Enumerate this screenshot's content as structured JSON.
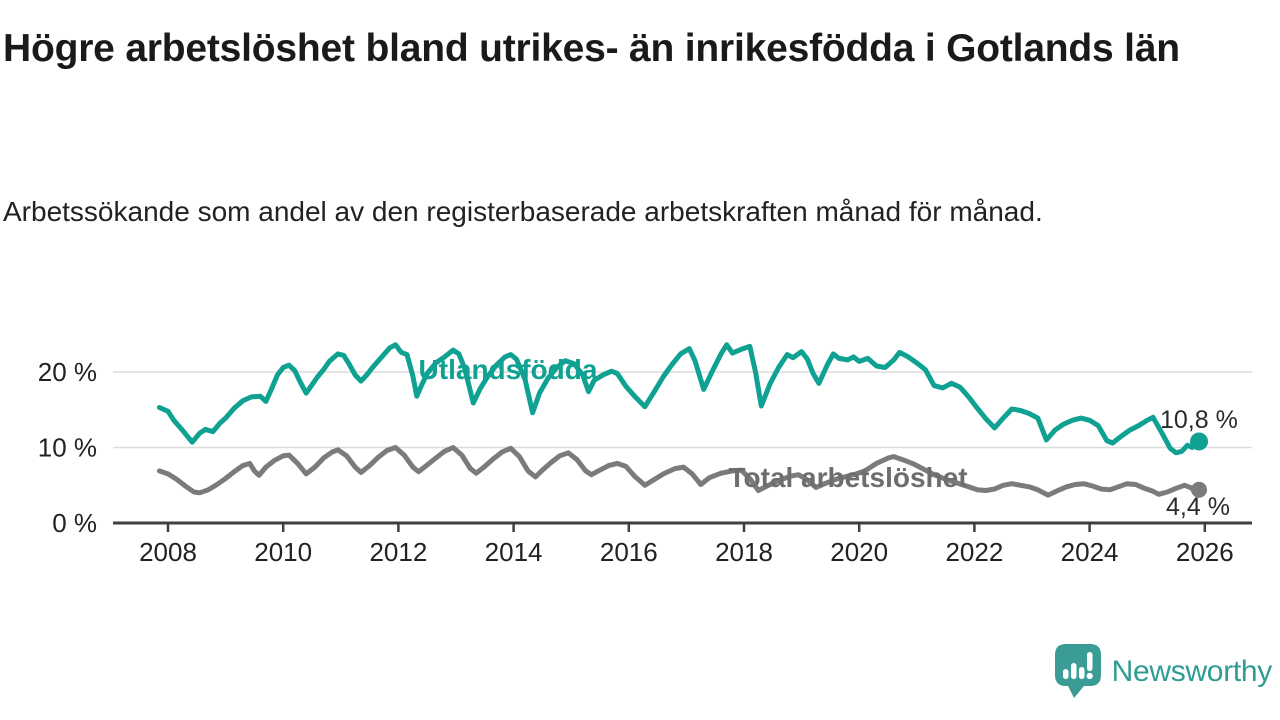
{
  "header": {
    "title": "Högre arbetslöshet bland utrikes- än inrikesfödda i Gotlands län",
    "subtitle": "Arbetssökande som andel av den registerbaserade arbetskraften månad för månad."
  },
  "footer": {
    "brand": "Newsworthy",
    "logo_icon": "speech-bubble-bar-chart-icon"
  },
  "colors": {
    "accent_teal": "#0fa191",
    "line_gray": "#7b7b7b",
    "label_gray": "#6e6e6e",
    "axis": "#3f3f3f",
    "gridline": "#dcdcdc",
    "text_dark": "#1a1a1a",
    "end_label": "#2b2b2b",
    "brand_teal": "#2f9c94",
    "logo_teal": "#3a9c95"
  },
  "chart_data": {
    "type": "line",
    "title": "Högre arbetslöshet bland utrikes- än inrikesfödda i Gotlands län",
    "xlabel": "",
    "ylabel": "",
    "unit": "%",
    "grid": true,
    "x_axis": {
      "ticks": [
        2008,
        2010,
        2012,
        2014,
        2016,
        2018,
        2020,
        2022,
        2024,
        2026
      ],
      "tick_labels": [
        "2008",
        "2010",
        "2012",
        "2014",
        "2016",
        "2018",
        "2020",
        "2022",
        "2024",
        "2026"
      ],
      "range": [
        2007.8,
        2026.8
      ]
    },
    "y_axis": {
      "ticks": [
        0,
        10,
        20
      ],
      "tick_labels": [
        "0 %",
        "10 %",
        "20 %"
      ],
      "range": [
        0,
        24.5
      ]
    },
    "series": [
      {
        "name": "Utlandsfödda",
        "color": "#0fa191",
        "label_color": "#0fa191",
        "end_label": "10,8 %",
        "end_value": 10.8,
        "points": [
          [
            2007.85,
            15.3
          ],
          [
            2008.0,
            14.8
          ],
          [
            2008.1,
            13.6
          ],
          [
            2008.25,
            12.3
          ],
          [
            2008.42,
            10.7
          ],
          [
            2008.55,
            11.9
          ],
          [
            2008.65,
            12.4
          ],
          [
            2008.78,
            12.1
          ],
          [
            2008.9,
            13.2
          ],
          [
            2009.0,
            13.9
          ],
          [
            2009.15,
            15.2
          ],
          [
            2009.3,
            16.2
          ],
          [
            2009.45,
            16.7
          ],
          [
            2009.6,
            16.8
          ],
          [
            2009.7,
            16.1
          ],
          [
            2009.8,
            17.8
          ],
          [
            2009.9,
            19.6
          ],
          [
            2010.0,
            20.6
          ],
          [
            2010.1,
            20.9
          ],
          [
            2010.2,
            20.2
          ],
          [
            2010.3,
            18.6
          ],
          [
            2010.4,
            17.2
          ],
          [
            2010.5,
            18.3
          ],
          [
            2010.6,
            19.4
          ],
          [
            2010.7,
            20.3
          ],
          [
            2010.8,
            21.4
          ],
          [
            2010.95,
            22.4
          ],
          [
            2011.05,
            22.2
          ],
          [
            2011.15,
            21.0
          ],
          [
            2011.25,
            19.6
          ],
          [
            2011.35,
            18.8
          ],
          [
            2011.45,
            19.6
          ],
          [
            2011.55,
            20.6
          ],
          [
            2011.7,
            21.9
          ],
          [
            2011.85,
            23.2
          ],
          [
            2011.95,
            23.6
          ],
          [
            2012.05,
            22.6
          ],
          [
            2012.15,
            22.3
          ],
          [
            2012.25,
            19.5
          ],
          [
            2012.32,
            16.8
          ],
          [
            2012.4,
            18.2
          ],
          [
            2012.5,
            19.8
          ],
          [
            2012.65,
            21.2
          ],
          [
            2012.8,
            22.0
          ],
          [
            2012.95,
            22.9
          ],
          [
            2013.05,
            22.4
          ],
          [
            2013.15,
            20.5
          ],
          [
            2013.3,
            15.9
          ],
          [
            2013.42,
            17.8
          ],
          [
            2013.55,
            19.4
          ],
          [
            2013.7,
            20.9
          ],
          [
            2013.85,
            22.0
          ],
          [
            2013.95,
            22.3
          ],
          [
            2014.05,
            21.7
          ],
          [
            2014.2,
            19.0
          ],
          [
            2014.33,
            14.6
          ],
          [
            2014.45,
            17.2
          ],
          [
            2014.6,
            19.2
          ],
          [
            2014.75,
            20.6
          ],
          [
            2014.9,
            21.5
          ],
          [
            2015.05,
            21.1
          ],
          [
            2015.2,
            19.6
          ],
          [
            2015.3,
            17.4
          ],
          [
            2015.4,
            18.9
          ],
          [
            2015.55,
            19.6
          ],
          [
            2015.7,
            20.1
          ],
          [
            2015.8,
            19.8
          ],
          [
            2015.95,
            18.1
          ],
          [
            2016.1,
            16.8
          ],
          [
            2016.28,
            15.4
          ],
          [
            2016.45,
            17.5
          ],
          [
            2016.6,
            19.4
          ],
          [
            2016.75,
            21.0
          ],
          [
            2016.9,
            22.4
          ],
          [
            2017.05,
            23.1
          ],
          [
            2017.15,
            21.5
          ],
          [
            2017.3,
            17.7
          ],
          [
            2017.45,
            20.1
          ],
          [
            2017.6,
            22.4
          ],
          [
            2017.7,
            23.6
          ],
          [
            2017.8,
            22.5
          ],
          [
            2017.95,
            23.0
          ],
          [
            2018.1,
            23.4
          ],
          [
            2018.2,
            20.0
          ],
          [
            2018.3,
            15.5
          ],
          [
            2018.45,
            18.4
          ],
          [
            2018.6,
            20.6
          ],
          [
            2018.75,
            22.3
          ],
          [
            2018.85,
            21.9
          ],
          [
            2019.0,
            22.7
          ],
          [
            2019.1,
            21.7
          ],
          [
            2019.2,
            19.8
          ],
          [
            2019.3,
            18.5
          ],
          [
            2019.45,
            21.0
          ],
          [
            2019.55,
            22.4
          ],
          [
            2019.65,
            21.8
          ],
          [
            2019.8,
            21.6
          ],
          [
            2019.9,
            22.0
          ],
          [
            2020.0,
            21.4
          ],
          [
            2020.15,
            21.8
          ],
          [
            2020.3,
            20.8
          ],
          [
            2020.45,
            20.6
          ],
          [
            2020.6,
            21.6
          ],
          [
            2020.7,
            22.6
          ],
          [
            2020.85,
            22.0
          ],
          [
            2021.0,
            21.2
          ],
          [
            2021.15,
            20.3
          ],
          [
            2021.3,
            18.2
          ],
          [
            2021.45,
            17.9
          ],
          [
            2021.6,
            18.5
          ],
          [
            2021.75,
            18.0
          ],
          [
            2021.9,
            16.7
          ],
          [
            2022.05,
            15.2
          ],
          [
            2022.2,
            13.8
          ],
          [
            2022.35,
            12.6
          ],
          [
            2022.5,
            13.9
          ],
          [
            2022.65,
            15.1
          ],
          [
            2022.8,
            14.9
          ],
          [
            2022.95,
            14.5
          ],
          [
            2023.1,
            13.9
          ],
          [
            2023.25,
            11.0
          ],
          [
            2023.4,
            12.3
          ],
          [
            2023.55,
            13.1
          ],
          [
            2023.7,
            13.6
          ],
          [
            2023.85,
            13.9
          ],
          [
            2024.0,
            13.6
          ],
          [
            2024.15,
            12.9
          ],
          [
            2024.3,
            10.9
          ],
          [
            2024.4,
            10.6
          ],
          [
            2024.55,
            11.5
          ],
          [
            2024.7,
            12.3
          ],
          [
            2024.85,
            12.9
          ],
          [
            2025.0,
            13.6
          ],
          [
            2025.1,
            14.0
          ],
          [
            2025.25,
            12.0
          ],
          [
            2025.4,
            9.9
          ],
          [
            2025.5,
            9.3
          ],
          [
            2025.6,
            9.5
          ],
          [
            2025.7,
            10.3
          ],
          [
            2025.78,
            10.0
          ],
          [
            2025.9,
            10.8
          ]
        ]
      },
      {
        "name": "Total arbetslöshet",
        "color": "#7b7b7b",
        "label_color": "#6e6e6e",
        "end_label": "4,4 %",
        "end_value": 4.4,
        "points": [
          [
            2007.85,
            6.9
          ],
          [
            2008.0,
            6.5
          ],
          [
            2008.15,
            5.8
          ],
          [
            2008.3,
            4.9
          ],
          [
            2008.45,
            4.1
          ],
          [
            2008.55,
            4.0
          ],
          [
            2008.7,
            4.4
          ],
          [
            2008.85,
            5.1
          ],
          [
            2009.0,
            5.9
          ],
          [
            2009.15,
            6.8
          ],
          [
            2009.3,
            7.6
          ],
          [
            2009.42,
            7.9
          ],
          [
            2009.5,
            6.9
          ],
          [
            2009.58,
            6.3
          ],
          [
            2009.7,
            7.4
          ],
          [
            2009.85,
            8.3
          ],
          [
            2010.0,
            8.9
          ],
          [
            2010.1,
            9.0
          ],
          [
            2010.25,
            7.9
          ],
          [
            2010.4,
            6.5
          ],
          [
            2010.55,
            7.4
          ],
          [
            2010.7,
            8.6
          ],
          [
            2010.85,
            9.4
          ],
          [
            2010.95,
            9.7
          ],
          [
            2011.1,
            8.9
          ],
          [
            2011.25,
            7.4
          ],
          [
            2011.35,
            6.7
          ],
          [
            2011.5,
            7.6
          ],
          [
            2011.65,
            8.7
          ],
          [
            2011.8,
            9.6
          ],
          [
            2011.95,
            10.0
          ],
          [
            2012.1,
            9.0
          ],
          [
            2012.25,
            7.4
          ],
          [
            2012.35,
            6.8
          ],
          [
            2012.5,
            7.7
          ],
          [
            2012.65,
            8.6
          ],
          [
            2012.8,
            9.5
          ],
          [
            2012.95,
            10.0
          ],
          [
            2013.1,
            9.0
          ],
          [
            2013.25,
            7.2
          ],
          [
            2013.35,
            6.6
          ],
          [
            2013.5,
            7.5
          ],
          [
            2013.65,
            8.5
          ],
          [
            2013.8,
            9.4
          ],
          [
            2013.95,
            9.9
          ],
          [
            2014.1,
            8.8
          ],
          [
            2014.25,
            6.9
          ],
          [
            2014.38,
            6.1
          ],
          [
            2014.5,
            7.0
          ],
          [
            2014.65,
            8.0
          ],
          [
            2014.8,
            8.9
          ],
          [
            2014.95,
            9.3
          ],
          [
            2015.1,
            8.4
          ],
          [
            2015.25,
            6.9
          ],
          [
            2015.35,
            6.4
          ],
          [
            2015.5,
            7.0
          ],
          [
            2015.65,
            7.6
          ],
          [
            2015.8,
            7.9
          ],
          [
            2015.95,
            7.5
          ],
          [
            2016.1,
            6.2
          ],
          [
            2016.28,
            5.0
          ],
          [
            2016.45,
            5.8
          ],
          [
            2016.6,
            6.5
          ],
          [
            2016.8,
            7.2
          ],
          [
            2016.95,
            7.4
          ],
          [
            2017.1,
            6.5
          ],
          [
            2017.25,
            5.1
          ],
          [
            2017.4,
            6.0
          ],
          [
            2017.6,
            6.6
          ],
          [
            2017.8,
            6.9
          ],
          [
            2017.95,
            7.0
          ],
          [
            2018.1,
            5.9
          ],
          [
            2018.25,
            4.3
          ],
          [
            2018.4,
            4.9
          ],
          [
            2018.6,
            5.6
          ],
          [
            2018.8,
            6.2
          ],
          [
            2018.95,
            6.4
          ],
          [
            2019.1,
            5.7
          ],
          [
            2019.25,
            4.7
          ],
          [
            2019.4,
            5.2
          ],
          [
            2019.6,
            5.8
          ],
          [
            2019.8,
            6.2
          ],
          [
            2019.95,
            6.5
          ],
          [
            2020.1,
            6.9
          ],
          [
            2020.3,
            7.9
          ],
          [
            2020.5,
            8.6
          ],
          [
            2020.6,
            8.8
          ],
          [
            2020.75,
            8.4
          ],
          [
            2020.95,
            7.8
          ],
          [
            2021.1,
            7.2
          ],
          [
            2021.3,
            6.4
          ],
          [
            2021.5,
            5.8
          ],
          [
            2021.7,
            5.3
          ],
          [
            2021.9,
            4.8
          ],
          [
            2022.05,
            4.4
          ],
          [
            2022.2,
            4.3
          ],
          [
            2022.35,
            4.5
          ],
          [
            2022.5,
            5.0
          ],
          [
            2022.65,
            5.2
          ],
          [
            2022.8,
            5.0
          ],
          [
            2022.95,
            4.8
          ],
          [
            2023.1,
            4.4
          ],
          [
            2023.28,
            3.7
          ],
          [
            2023.45,
            4.3
          ],
          [
            2023.6,
            4.8
          ],
          [
            2023.75,
            5.1
          ],
          [
            2023.9,
            5.2
          ],
          [
            2024.05,
            4.9
          ],
          [
            2024.2,
            4.5
          ],
          [
            2024.35,
            4.4
          ],
          [
            2024.5,
            4.8
          ],
          [
            2024.65,
            5.2
          ],
          [
            2024.8,
            5.1
          ],
          [
            2024.95,
            4.6
          ],
          [
            2025.1,
            4.2
          ],
          [
            2025.2,
            3.8
          ],
          [
            2025.35,
            4.1
          ],
          [
            2025.5,
            4.6
          ],
          [
            2025.65,
            5.0
          ],
          [
            2025.75,
            4.7
          ],
          [
            2025.82,
            4.3
          ],
          [
            2025.9,
            4.4
          ]
        ]
      }
    ],
    "legend_position": "inline-labels"
  }
}
